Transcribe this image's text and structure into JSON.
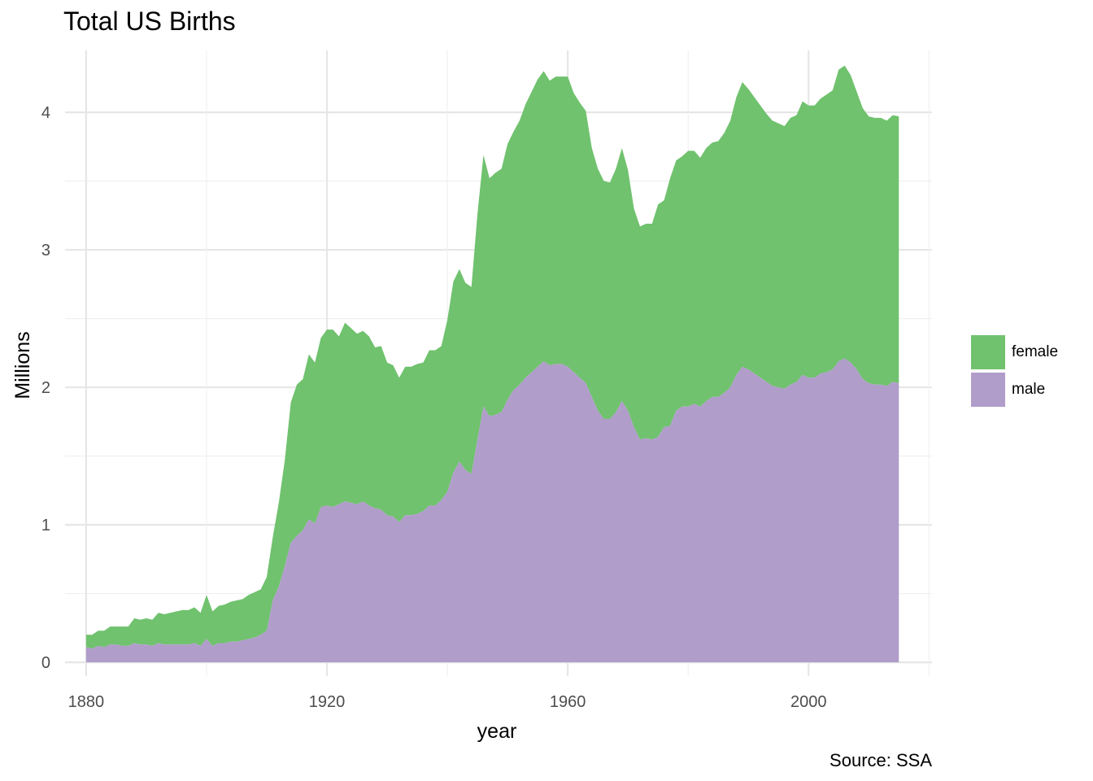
{
  "chart_data": {
    "type": "area",
    "stacked": true,
    "title": "Total US Births",
    "xlabel": "year",
    "ylabel": "Millions",
    "caption": "Source: SSA",
    "xlim": [
      1876.5,
      2020.5
    ],
    "ylim": [
      -0.1,
      4.45
    ],
    "x_ticks": [
      1880,
      1920,
      1960,
      2000
    ],
    "x_tick_labels": [
      "1880",
      "1920",
      "1960",
      "2000"
    ],
    "y_ticks": [
      0,
      1,
      2,
      3,
      4
    ],
    "y_tick_labels": [
      "0",
      "1",
      "2",
      "3",
      "4"
    ],
    "grid": true,
    "legend_position": "right",
    "x": [
      1880,
      1881,
      1882,
      1883,
      1884,
      1885,
      1886,
      1887,
      1888,
      1889,
      1890,
      1891,
      1892,
      1893,
      1894,
      1895,
      1896,
      1897,
      1898,
      1899,
      1900,
      1901,
      1902,
      1903,
      1904,
      1905,
      1906,
      1907,
      1908,
      1909,
      1910,
      1911,
      1912,
      1913,
      1914,
      1915,
      1916,
      1917,
      1918,
      1919,
      1920,
      1921,
      1922,
      1923,
      1924,
      1925,
      1926,
      1927,
      1928,
      1929,
      1930,
      1931,
      1932,
      1933,
      1934,
      1935,
      1936,
      1937,
      1938,
      1939,
      1940,
      1941,
      1942,
      1943,
      1944,
      1945,
      1946,
      1947,
      1948,
      1949,
      1950,
      1951,
      1952,
      1953,
      1954,
      1955,
      1956,
      1957,
      1958,
      1959,
      1960,
      1961,
      1962,
      1963,
      1964,
      1965,
      1966,
      1967,
      1968,
      1969,
      1970,
      1971,
      1972,
      1973,
      1974,
      1975,
      1976,
      1977,
      1978,
      1979,
      1980,
      1981,
      1982,
      1983,
      1984,
      1985,
      1986,
      1987,
      1988,
      1989,
      1990,
      1991,
      1992,
      1993,
      1994,
      1995,
      1996,
      1997,
      1998,
      1999,
      2000,
      2001,
      2002,
      2003,
      2004,
      2005,
      2006,
      2007,
      2008,
      2009,
      2010,
      2011,
      2012,
      2013,
      2014,
      2015
    ],
    "series": [
      {
        "name": "male",
        "color": "#b09dca",
        "values": [
          0.11,
          0.1,
          0.12,
          0.11,
          0.13,
          0.13,
          0.12,
          0.12,
          0.14,
          0.13,
          0.13,
          0.12,
          0.14,
          0.13,
          0.13,
          0.13,
          0.13,
          0.13,
          0.14,
          0.12,
          0.17,
          0.12,
          0.14,
          0.14,
          0.15,
          0.15,
          0.16,
          0.17,
          0.18,
          0.2,
          0.23,
          0.45,
          0.55,
          0.7,
          0.87,
          0.92,
          0.96,
          1.04,
          1.01,
          1.13,
          1.14,
          1.13,
          1.15,
          1.17,
          1.16,
          1.15,
          1.17,
          1.14,
          1.12,
          1.11,
          1.07,
          1.06,
          1.02,
          1.07,
          1.07,
          1.08,
          1.1,
          1.14,
          1.14,
          1.18,
          1.24,
          1.38,
          1.46,
          1.4,
          1.37,
          1.62,
          1.86,
          1.79,
          1.8,
          1.82,
          1.91,
          1.98,
          2.02,
          2.07,
          2.11,
          2.15,
          2.19,
          2.16,
          2.17,
          2.17,
          2.15,
          2.11,
          2.07,
          2.03,
          1.93,
          1.83,
          1.77,
          1.77,
          1.82,
          1.9,
          1.83,
          1.71,
          1.62,
          1.63,
          1.62,
          1.64,
          1.71,
          1.72,
          1.83,
          1.86,
          1.86,
          1.88,
          1.86,
          1.9,
          1.93,
          1.93,
          1.96,
          2.0,
          2.09,
          2.15,
          2.13,
          2.1,
          2.07,
          2.04,
          2.01,
          2.0,
          1.99,
          2.02,
          2.04,
          2.09,
          2.07,
          2.07,
          2.1,
          2.11,
          2.13,
          2.19,
          2.21,
          2.18,
          2.13,
          2.06,
          2.03,
          2.02,
          2.02,
          2.01,
          2.04,
          2.03
        ]
      },
      {
        "name": "female",
        "color": "#70c26e",
        "values": [
          0.09,
          0.1,
          0.11,
          0.12,
          0.13,
          0.13,
          0.14,
          0.14,
          0.18,
          0.18,
          0.19,
          0.19,
          0.22,
          0.22,
          0.23,
          0.24,
          0.25,
          0.25,
          0.26,
          0.24,
          0.32,
          0.25,
          0.27,
          0.28,
          0.29,
          0.3,
          0.3,
          0.32,
          0.33,
          0.33,
          0.39,
          0.46,
          0.61,
          0.77,
          1.02,
          1.1,
          1.1,
          1.2,
          1.17,
          1.23,
          1.28,
          1.29,
          1.22,
          1.3,
          1.27,
          1.24,
          1.24,
          1.23,
          1.17,
          1.19,
          1.11,
          1.1,
          1.05,
          1.08,
          1.08,
          1.09,
          1.08,
          1.13,
          1.13,
          1.12,
          1.25,
          1.39,
          1.4,
          1.36,
          1.36,
          1.64,
          1.83,
          1.73,
          1.76,
          1.77,
          1.86,
          1.88,
          1.92,
          1.99,
          2.04,
          2.09,
          2.11,
          2.07,
          2.09,
          2.09,
          2.11,
          2.03,
          2.0,
          1.98,
          1.81,
          1.76,
          1.73,
          1.72,
          1.77,
          1.84,
          1.75,
          1.59,
          1.55,
          1.56,
          1.57,
          1.69,
          1.65,
          1.8,
          1.82,
          1.82,
          1.86,
          1.84,
          1.81,
          1.84,
          1.85,
          1.86,
          1.89,
          1.94,
          2.02,
          2.07,
          2.04,
          2.01,
          1.98,
          1.95,
          1.93,
          1.92,
          1.91,
          1.94,
          1.94,
          1.99,
          1.98,
          1.98,
          2.0,
          2.02,
          2.03,
          2.12,
          2.13,
          2.09,
          2.02,
          1.97,
          1.94,
          1.94,
          1.94,
          1.93,
          1.94,
          1.94
        ]
      }
    ]
  }
}
